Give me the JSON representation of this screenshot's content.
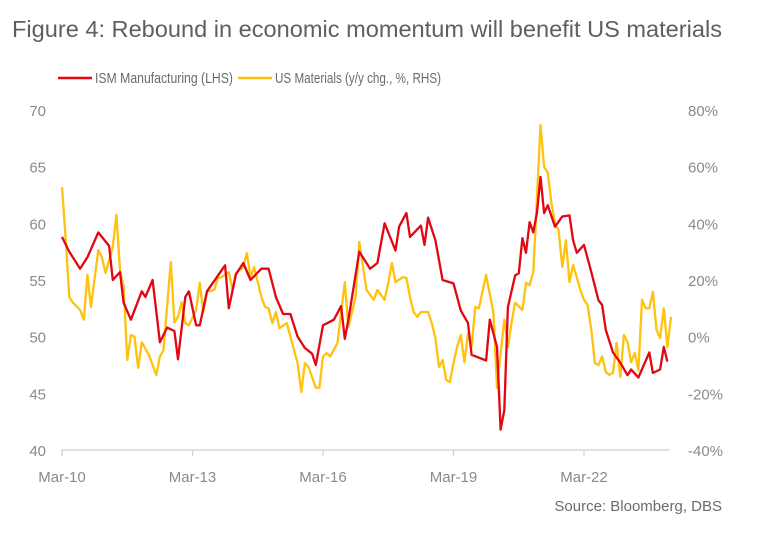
{
  "chart_data": {
    "type": "line",
    "title": "Figure 4: Rebound in economic momentum will benefit US materials",
    "source": "Source: Bloomberg, DBS",
    "x_ticks": [
      "Mar-10",
      "Mar-13",
      "Mar-16",
      "Mar-19",
      "Mar-22"
    ],
    "x_tick_dates": [
      "2010-03",
      "2013-03",
      "2016-03",
      "2019-03",
      "2022-03"
    ],
    "x_range": [
      "2010-03",
      "2024-03"
    ],
    "y_left": {
      "range": [
        40,
        70
      ],
      "ticks": [
        "40",
        "45",
        "50",
        "55",
        "60",
        "65",
        "70"
      ]
    },
    "y_right": {
      "range": [
        -40,
        80
      ],
      "ticks": [
        "-40%",
        "-20%",
        "0%",
        "20%",
        "40%",
        "60%",
        "80%"
      ]
    },
    "grid": false,
    "legend_position": "top",
    "series": [
      {
        "name": "ISM Manufacturing (LHS)",
        "axis": "left",
        "color": "#E30613",
        "points": [
          [
            "2010-03",
            58.8
          ],
          [
            "2010-05",
            57.5
          ],
          [
            "2010-08",
            56
          ],
          [
            "2010-10",
            57
          ],
          [
            "2011-01",
            59.2
          ],
          [
            "2011-04",
            58
          ],
          [
            "2011-05",
            55
          ],
          [
            "2011-07",
            55.7
          ],
          [
            "2011-08",
            53
          ],
          [
            "2011-10",
            51.5
          ],
          [
            "2012-01",
            54
          ],
          [
            "2012-02",
            53.5
          ],
          [
            "2012-04",
            55
          ],
          [
            "2012-06",
            49.5
          ],
          [
            "2012-08",
            50.8
          ],
          [
            "2012-10",
            50.5
          ],
          [
            "2012-11",
            48
          ],
          [
            "2013-01",
            53.5
          ],
          [
            "2013-02",
            54
          ],
          [
            "2013-04",
            51
          ],
          [
            "2013-05",
            51
          ],
          [
            "2013-07",
            54
          ],
          [
            "2013-12",
            56.3
          ],
          [
            "2014-01",
            52.5
          ],
          [
            "2014-03",
            55.5
          ],
          [
            "2014-05",
            56.5
          ],
          [
            "2014-07",
            55
          ],
          [
            "2014-10",
            56
          ],
          [
            "2014-12",
            56
          ],
          [
            "2015-02",
            53.5
          ],
          [
            "2015-04",
            52
          ],
          [
            "2015-06",
            52
          ],
          [
            "2015-08",
            50
          ],
          [
            "2015-10",
            49
          ],
          [
            "2015-12",
            48.5
          ],
          [
            "2016-01",
            47.5
          ],
          [
            "2016-03",
            51
          ],
          [
            "2016-06",
            51.5
          ],
          [
            "2016-08",
            52.7
          ],
          [
            "2016-09",
            49.8
          ],
          [
            "2016-10",
            51.5
          ],
          [
            "2017-01",
            57.5
          ],
          [
            "2017-04",
            56
          ],
          [
            "2017-06",
            56.5
          ],
          [
            "2017-08",
            60
          ],
          [
            "2017-11",
            57.6
          ],
          [
            "2017-12",
            59.7
          ],
          [
            "2018-02",
            60.9
          ],
          [
            "2018-03",
            58.8
          ],
          [
            "2018-06",
            59.8
          ],
          [
            "2018-07",
            58.1
          ],
          [
            "2018-08",
            60.5
          ],
          [
            "2018-10",
            58.5
          ],
          [
            "2018-12",
            55
          ],
          [
            "2019-03",
            54.7
          ],
          [
            "2019-05",
            52.3
          ],
          [
            "2019-07",
            51.2
          ],
          [
            "2019-08",
            48.4
          ],
          [
            "2019-12",
            47.9
          ],
          [
            "2020-01",
            51.5
          ],
          [
            "2020-03",
            49.1
          ],
          [
            "2020-04",
            41.8
          ],
          [
            "2020-05",
            43.5
          ],
          [
            "2020-06",
            52.6
          ],
          [
            "2020-08",
            55.4
          ],
          [
            "2020-09",
            55.6
          ],
          [
            "2020-10",
            58.7
          ],
          [
            "2020-11",
            57.4
          ],
          [
            "2020-12",
            60.1
          ],
          [
            "2021-01",
            59.2
          ],
          [
            "2021-02",
            60.9
          ],
          [
            "2021-03",
            64.1
          ],
          [
            "2021-04",
            60.9
          ],
          [
            "2021-05",
            61.6
          ],
          [
            "2021-07",
            59.7
          ],
          [
            "2021-09",
            60.6
          ],
          [
            "2021-11",
            60.7
          ],
          [
            "2021-12",
            58.5
          ],
          [
            "2022-01",
            57.4
          ],
          [
            "2022-03",
            58.1
          ],
          [
            "2022-05",
            55.7
          ],
          [
            "2022-07",
            53.2
          ],
          [
            "2022-08",
            52.8
          ],
          [
            "2022-09",
            50.6
          ],
          [
            "2022-11",
            48.6
          ],
          [
            "2023-01",
            47.7
          ],
          [
            "2023-03",
            46.6
          ],
          [
            "2023-04",
            47.1
          ],
          [
            "2023-06",
            46.4
          ],
          [
            "2023-09",
            48.6
          ],
          [
            "2023-10",
            46.8
          ],
          [
            "2023-12",
            47.1
          ],
          [
            "2024-01",
            49.1
          ],
          [
            "2024-02",
            47.8
          ]
        ]
      },
      {
        "name": "US Materials (y/y chg., %, RHS)",
        "axis": "right",
        "color": "#FFC20E",
        "points": [
          [
            "2010-03",
            52.8
          ],
          [
            "2010-04",
            35
          ],
          [
            "2010-05",
            14
          ],
          [
            "2010-06",
            12
          ],
          [
            "2010-08",
            9.4
          ],
          [
            "2010-09",
            6
          ],
          [
            "2010-10",
            21.8
          ],
          [
            "2010-11",
            10.5
          ],
          [
            "2011-01",
            30.6
          ],
          [
            "2011-02",
            28
          ],
          [
            "2011-03",
            22.5
          ],
          [
            "2011-05",
            31.7
          ],
          [
            "2011-06",
            43
          ],
          [
            "2011-07",
            23.5
          ],
          [
            "2011-08",
            17.5
          ],
          [
            "2011-09",
            -8.2
          ],
          [
            "2011-10",
            0.6
          ],
          [
            "2011-11",
            0
          ],
          [
            "2011-12",
            -11
          ],
          [
            "2012-01",
            -2
          ],
          [
            "2012-03",
            -6.5
          ],
          [
            "2012-05",
            -13.5
          ],
          [
            "2012-06",
            -7
          ],
          [
            "2012-07",
            -4.7
          ],
          [
            "2012-09",
            26.4
          ],
          [
            "2012-10",
            5
          ],
          [
            "2012-11",
            7
          ],
          [
            "2012-12",
            12.2
          ],
          [
            "2013-01",
            4.8
          ],
          [
            "2013-02",
            4
          ],
          [
            "2013-04",
            9.4
          ],
          [
            "2013-05",
            19
          ],
          [
            "2013-06",
            8.7
          ],
          [
            "2013-07",
            15.8
          ],
          [
            "2013-09",
            16.5
          ],
          [
            "2013-10",
            20.7
          ],
          [
            "2013-11",
            21
          ],
          [
            "2014-01",
            22.8
          ],
          [
            "2014-02",
            16.5
          ],
          [
            "2014-03",
            22.5
          ],
          [
            "2014-05",
            24.6
          ],
          [
            "2014-06",
            29.5
          ],
          [
            "2014-07",
            21
          ],
          [
            "2014-08",
            24.6
          ],
          [
            "2014-10",
            14
          ],
          [
            "2014-11",
            10.5
          ],
          [
            "2014-12",
            10
          ],
          [
            "2015-01",
            4.8
          ],
          [
            "2015-02",
            8.7
          ],
          [
            "2015-03",
            3
          ],
          [
            "2015-05",
            4.8
          ],
          [
            "2015-07",
            -4.7
          ],
          [
            "2015-08",
            -9.3
          ],
          [
            "2015-09",
            -19.5
          ],
          [
            "2015-10",
            -9.3
          ],
          [
            "2015-11",
            -10.7
          ],
          [
            "2016-01",
            -18
          ],
          [
            "2016-02",
            -18
          ],
          [
            "2016-03",
            -7
          ],
          [
            "2016-04",
            -5.8
          ],
          [
            "2016-05",
            -7
          ],
          [
            "2016-07",
            -2.2
          ],
          [
            "2016-09",
            19.3
          ],
          [
            "2016-10",
            3.4
          ],
          [
            "2016-12",
            14
          ],
          [
            "2017-01",
            33.4
          ],
          [
            "2017-03",
            16.5
          ],
          [
            "2017-05",
            13
          ],
          [
            "2017-06",
            16.5
          ],
          [
            "2017-08",
            13
          ],
          [
            "2017-09",
            19
          ],
          [
            "2017-10",
            26
          ],
          [
            "2017-11",
            19.3
          ],
          [
            "2018-01",
            21
          ],
          [
            "2018-02",
            20.7
          ],
          [
            "2018-03",
            14
          ],
          [
            "2018-04",
            8.7
          ],
          [
            "2018-05",
            7
          ],
          [
            "2018-06",
            8.7
          ],
          [
            "2018-08",
            8.7
          ],
          [
            "2018-09",
            4.8
          ],
          [
            "2018-10",
            -0.5
          ],
          [
            "2018-11",
            -10.7
          ],
          [
            "2018-12",
            -8.2
          ],
          [
            "2019-01",
            -15.3
          ],
          [
            "2019-02",
            -16
          ],
          [
            "2019-03",
            -9.3
          ],
          [
            "2019-04",
            -3.6
          ],
          [
            "2019-05",
            0.6
          ],
          [
            "2019-06",
            -9
          ],
          [
            "2019-07",
            1.3
          ],
          [
            "2019-08",
            -3.6
          ],
          [
            "2019-09",
            10.5
          ],
          [
            "2019-10",
            10
          ],
          [
            "2019-12",
            21.8
          ],
          [
            "2020-02",
            8.4
          ],
          [
            "2020-03",
            -18
          ],
          [
            "2020-05",
            6
          ],
          [
            "2020-06",
            -3.6
          ],
          [
            "2020-07",
            4.8
          ],
          [
            "2020-08",
            12
          ],
          [
            "2020-10",
            9.4
          ],
          [
            "2020-11",
            19
          ],
          [
            "2020-12",
            18.2
          ],
          [
            "2021-01",
            22.8
          ],
          [
            "2021-03",
            74.7
          ],
          [
            "2021-04",
            60
          ],
          [
            "2021-05",
            57.8
          ],
          [
            "2021-06",
            47.2
          ],
          [
            "2021-07",
            40
          ],
          [
            "2021-08",
            37.6
          ],
          [
            "2021-09",
            24.6
          ],
          [
            "2021-10",
            34
          ],
          [
            "2021-11",
            19.3
          ],
          [
            "2021-12",
            25.3
          ],
          [
            "2022-02",
            16.5
          ],
          [
            "2022-03",
            13
          ],
          [
            "2022-04",
            11.2
          ],
          [
            "2022-05",
            2.4
          ],
          [
            "2022-06",
            -9.3
          ],
          [
            "2022-07",
            -10
          ],
          [
            "2022-08",
            -7
          ],
          [
            "2022-09",
            -12.5
          ],
          [
            "2022-10",
            -13.5
          ],
          [
            "2022-11",
            -12.8
          ],
          [
            "2022-12",
            -2.2
          ],
          [
            "2023-01",
            -14.2
          ],
          [
            "2023-02",
            0.6
          ],
          [
            "2023-03",
            -2
          ],
          [
            "2023-04",
            -9
          ],
          [
            "2023-05",
            -5.8
          ],
          [
            "2023-06",
            -11.8
          ],
          [
            "2023-07",
            13
          ],
          [
            "2023-08",
            10
          ],
          [
            "2023-09",
            10
          ],
          [
            "2023-10",
            15.8
          ],
          [
            "2023-11",
            2.4
          ],
          [
            "2023-12",
            -0.5
          ],
          [
            "2024-01",
            10
          ],
          [
            "2024-02",
            -3.6
          ],
          [
            "2024-03",
            7
          ]
        ]
      }
    ]
  }
}
